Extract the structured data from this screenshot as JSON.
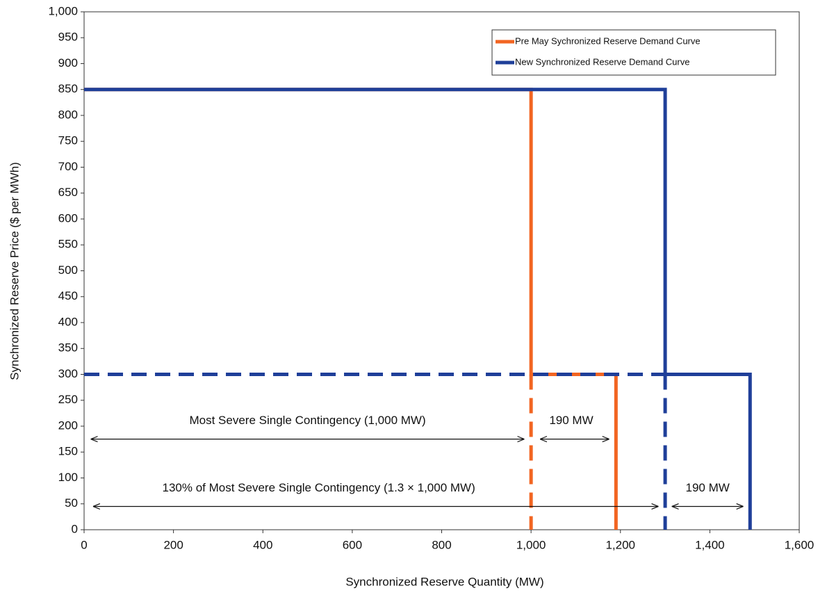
{
  "chart_data": {
    "type": "line",
    "x_label": "Synchronized Reserve Quantity (MW)",
    "y_label": "Synchronized Reserve Price ($ per MWh)",
    "xlim": [
      0,
      1600
    ],
    "xticks": [
      0,
      200,
      400,
      600,
      800,
      {
        "value": 1000,
        "label": "1,000"
      },
      {
        "value": 1200,
        "label": "1,200"
      },
      {
        "value": 1400,
        "label": "1,400"
      },
      {
        "value": 1600,
        "label": "1,600"
      }
    ],
    "ylim": [
      0,
      1000
    ],
    "yticks": [
      0,
      50,
      100,
      150,
      200,
      250,
      300,
      350,
      400,
      450,
      500,
      550,
      600,
      650,
      700,
      750,
      800,
      850,
      900,
      950,
      {
        "value": 1000,
        "label": "1,000"
      }
    ],
    "grid": false,
    "legend_position": "upper right",
    "series": [
      {
        "name": "Pre May Sychronized Reserve Demand Curve",
        "color": "#f26522",
        "x": [
          0,
          1000,
          1000,
          1190,
          1190
        ],
        "values": [
          850,
          850,
          300,
          300,
          0
        ]
      },
      {
        "name": "New Synchronized Reserve Demand Curve",
        "color": "#1f3f99",
        "x": [
          0,
          1300,
          1300,
          1490,
          1490
        ],
        "values": [
          850,
          850,
          300,
          300,
          0
        ]
      }
    ],
    "dashed_lines": [
      {
        "color": "#1f3f99",
        "x": [
          0,
          1300
        ],
        "values": [
          300,
          300
        ]
      },
      {
        "color": "#f26522",
        "x": [
          1000,
          1000
        ],
        "values": [
          300,
          0
        ]
      },
      {
        "color": "#1f3f99",
        "x": [
          1300,
          1300
        ],
        "values": [
          300,
          0
        ]
      }
    ],
    "arrows": [
      {
        "label": "Most Severe Single Contingency (1,000 MW)",
        "x": [
          15,
          985
        ],
        "y": 175,
        "label_x": 500,
        "label_y": 210
      },
      {
        "label": "190 MW",
        "x": [
          1020,
          1175
        ],
        "y": 175,
        "label_x": 1090,
        "label_y": 210
      },
      {
        "label": "130% of Most Severe Single Contingency (1.3 × 1,000 MW)",
        "x": [
          20,
          1285
        ],
        "y": 45,
        "label_x": 525,
        "label_y": 80
      },
      {
        "label": "190 MW",
        "x": [
          1315,
          1475
        ],
        "y": 45,
        "label_x": 1395,
        "label_y": 80
      }
    ]
  }
}
